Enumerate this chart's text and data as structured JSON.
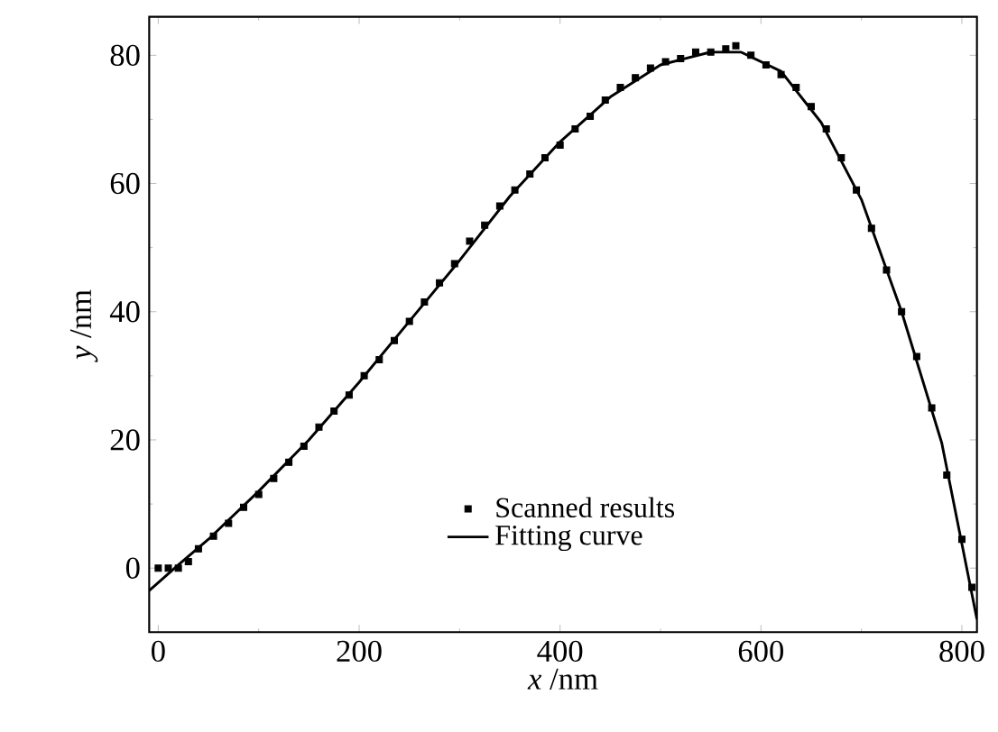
{
  "chart_data": {
    "type": "scatter",
    "xlabel": "*x* /nm",
    "ylabel": "*y* /nm",
    "xlim": [
      -9,
      815
    ],
    "ylim": [
      -10,
      86
    ],
    "xticks": [
      0,
      200,
      400,
      600,
      800
    ],
    "yticks": [
      0,
      20,
      40,
      60,
      80
    ],
    "grid": false,
    "legend": "bottom",
    "series": [
      {
        "name": "Scanned results",
        "marker": "square",
        "color": "#000000",
        "x": [
          0,
          10,
          20,
          30,
          40,
          55,
          70,
          85,
          100,
          115,
          130,
          145,
          160,
          175,
          190,
          205,
          220,
          235,
          250,
          265,
          280,
          295,
          310,
          325,
          340,
          355,
          370,
          385,
          400,
          415,
          430,
          445,
          460,
          475,
          490,
          505,
          520,
          535,
          550,
          565,
          575,
          590,
          605,
          620,
          635,
          650,
          665,
          680,
          695,
          710,
          725,
          740,
          755,
          770,
          785,
          800,
          810
        ],
        "values": [
          0,
          0,
          0,
          1,
          3,
          5,
          7,
          9.5,
          11.5,
          14,
          16.5,
          19,
          22,
          24.5,
          27,
          30,
          32.5,
          35.5,
          38.5,
          41.5,
          44.5,
          47.5,
          51,
          53.5,
          56.5,
          59,
          61.5,
          64,
          66,
          68.5,
          70.5,
          73,
          75,
          76.5,
          78,
          79,
          79.5,
          80.5,
          80.5,
          81,
          81.5,
          80,
          78.5,
          77,
          75,
          72,
          68.5,
          64,
          59,
          53,
          46.5,
          40,
          33,
          25,
          14.5,
          4.5,
          -3
        ]
      },
      {
        "name": "Fitting curve",
        "type": "line",
        "marker": "none",
        "color": "#000000",
        "line_style": "solid",
        "x": [
          -9,
          20,
          50,
          100,
          150,
          200,
          250,
          300,
          350,
          400,
          450,
          500,
          550,
          580,
          620,
          660,
          700,
          740,
          780,
          815
        ],
        "values": [
          -3.5,
          0.5,
          4.5,
          12,
          20,
          29,
          38.5,
          48,
          58,
          66.5,
          73.5,
          78.5,
          80.5,
          80.5,
          77.5,
          69.5,
          57.5,
          40,
          19.5,
          -8
        ]
      }
    ]
  }
}
